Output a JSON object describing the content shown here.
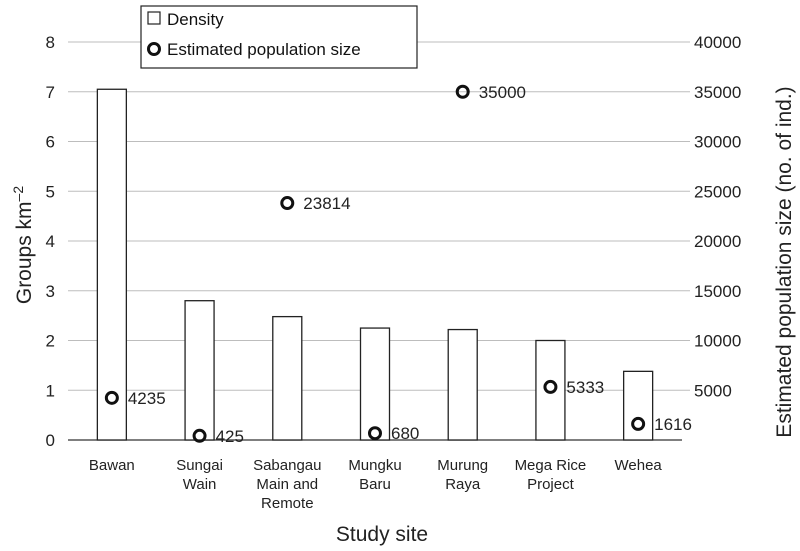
{
  "chart_data": {
    "type": "bar",
    "categories": [
      [
        "Bawan"
      ],
      [
        "Sungai",
        "Wain"
      ],
      [
        "Sabangau",
        "Main and",
        "Remote"
      ],
      [
        "Mungku",
        "Baru"
      ],
      [
        "Murung",
        "Raya"
      ],
      [
        "Mega Rice",
        "Project"
      ],
      [
        "Wehea"
      ]
    ],
    "series": [
      {
        "name": "Density",
        "type": "bar",
        "axis": "left",
        "values": [
          7.05,
          2.8,
          2.48,
          2.25,
          2.22,
          2.0,
          1.38
        ]
      },
      {
        "name": "Estimated population size",
        "type": "scatter",
        "axis": "right",
        "values": [
          4235,
          425,
          23814,
          680,
          35000,
          5333,
          1616
        ],
        "labels": [
          "4235",
          "425",
          "23814",
          "680",
          "35000",
          "5333",
          "1616"
        ]
      }
    ],
    "xlabel": "Study site",
    "ylabel": "Groups km",
    "ylabel_sup": "–2",
    "y2label": "Estimated population size (no. of ind.)",
    "ylim": [
      0,
      8
    ],
    "y2lim": [
      0,
      40000
    ],
    "yticks": [
      "0",
      "1",
      "2",
      "3",
      "4",
      "5",
      "6",
      "7",
      "8"
    ],
    "y2ticks": [
      "5000",
      "10000",
      "15000",
      "20000",
      "25000",
      "30000",
      "35000",
      "40000"
    ],
    "grid": true,
    "legend_position": "top-left"
  }
}
